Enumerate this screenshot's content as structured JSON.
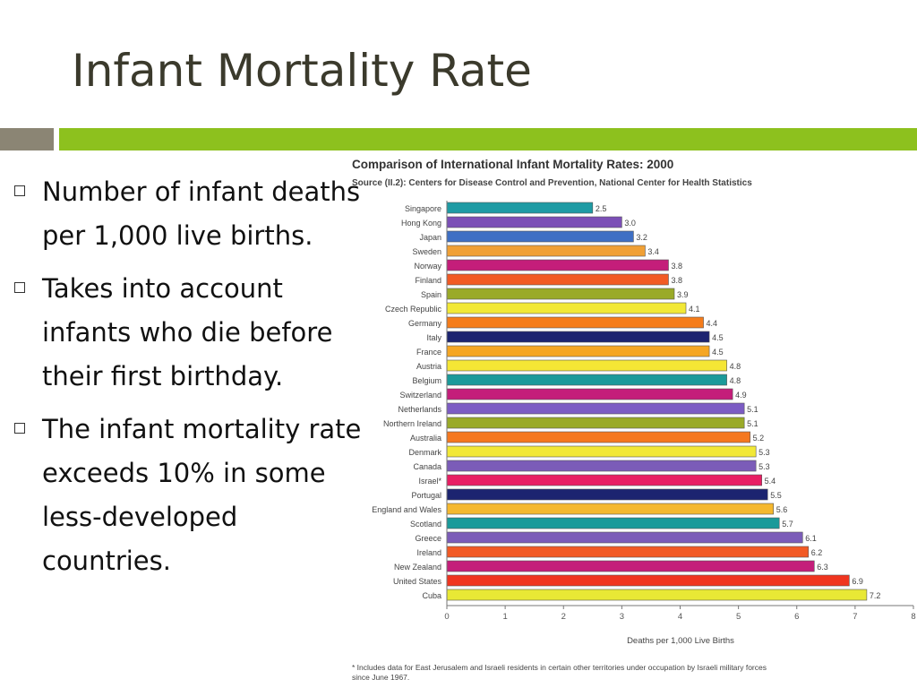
{
  "slide": {
    "title": "Infant Mortality Rate",
    "bullets": [
      "Number of infant deaths per 1,000 live births.",
      "Takes into account infants who die before their first birthday.",
      "The infant mortality rate exceeds 10% in some less-developed countries."
    ]
  },
  "chart_data": {
    "type": "bar",
    "orientation": "horizontal",
    "title": "Comparison of International Infant Mortality Rates: 2000",
    "subtitle": "Source (II.2): Centers for Disease Control and Prevention, National Center for Health Statistics",
    "xlabel": "Deaths per 1,000 Live Births",
    "xlim": [
      0,
      8
    ],
    "xticks": [
      0,
      1,
      2,
      3,
      4,
      5,
      6,
      7,
      8
    ],
    "grid": false,
    "footnote": "* Includes data for East Jerusalem and Israeli residents in certain other territories under occupation by Israeli military forces since June 1967.",
    "categories": [
      "Singapore",
      "Hong Kong",
      "Japan",
      "Sweden",
      "Norway",
      "Finland",
      "Spain",
      "Czech Republic",
      "Germany",
      "Italy",
      "France",
      "Austria",
      "Belgium",
      "Switzerland",
      "Netherlands",
      "Northern Ireland",
      "Australia",
      "Denmark",
      "Canada",
      "Israel*",
      "Portugal",
      "England and Wales",
      "Scotland",
      "Greece",
      "Ireland",
      "New Zealand",
      "United States",
      "Cuba"
    ],
    "values": [
      2.5,
      3.0,
      3.2,
      3.4,
      3.8,
      3.8,
      3.9,
      4.1,
      4.4,
      4.5,
      4.5,
      4.8,
      4.8,
      4.9,
      5.1,
      5.1,
      5.2,
      5.3,
      5.3,
      5.4,
      5.5,
      5.6,
      5.7,
      6.1,
      6.2,
      6.3,
      6.9,
      7.2
    ],
    "value_labels": [
      "2.5",
      "3.0",
      "3.2",
      "3.4",
      "3.8",
      "3.8",
      "3.9",
      "4.1",
      "4.4",
      "4.5",
      "4.5",
      "4.8",
      "4.8",
      "4.9",
      "5.1",
      "5.1",
      "5.2",
      "5.3",
      "5.3",
      "5.4",
      "5.5",
      "5.6",
      "5.7",
      "6.1",
      "6.2",
      "6.3",
      "6.9",
      "7.2"
    ],
    "colors": [
      "#1f9ba4",
      "#7b4fb6",
      "#3e6fc4",
      "#f0a035",
      "#c41e7a",
      "#f25a24",
      "#9aaa28",
      "#f2e836",
      "#f57c1a",
      "#1c2470",
      "#f5a623",
      "#f5e635",
      "#1a9a9a",
      "#c41e7a",
      "#7c5cc4",
      "#9aaa28",
      "#f5781f",
      "#f2e836",
      "#7b5cb8",
      "#e81e63",
      "#1c2470",
      "#f5b82e",
      "#1a9a9a",
      "#7b5cb8",
      "#f25a24",
      "#c41e7a",
      "#f0351f",
      "#e8e835"
    ]
  }
}
